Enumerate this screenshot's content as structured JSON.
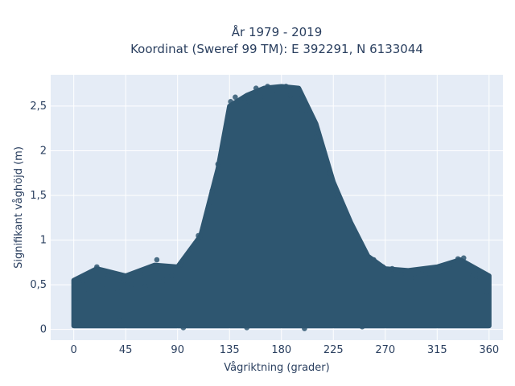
{
  "chart_data": {
    "type": "scatter",
    "title_lines": [
      "År 1979 - 2019",
      "Koordinat (Sweref 99 TM): E 392291, N 6133044"
    ],
    "xlabel": "Vågriktning (grader)",
    "ylabel": "Signifikant våghöjd (m)",
    "xlim": [
      -20,
      372
    ],
    "ylim": [
      -0.12,
      2.85
    ],
    "x_ticks": [
      {
        "value": 0,
        "label": "0"
      },
      {
        "value": 45,
        "label": "45"
      },
      {
        "value": 90,
        "label": "90"
      },
      {
        "value": 135,
        "label": "135"
      },
      {
        "value": 180,
        "label": "180"
      },
      {
        "value": 225,
        "label": "225"
      },
      {
        "value": 270,
        "label": "270"
      },
      {
        "value": 315,
        "label": "315"
      },
      {
        "value": 360,
        "label": "360"
      }
    ],
    "y_ticks": [
      {
        "value": 0,
        "label": "0"
      },
      {
        "value": 0.5,
        "label": "0,5"
      },
      {
        "value": 1,
        "label": "1"
      },
      {
        "value": 1.5,
        "label": "1,5"
      },
      {
        "value": 2,
        "label": "2"
      },
      {
        "value": 2.5,
        "label": "2,5"
      }
    ],
    "grid": true,
    "marker_color": "#2e5670",
    "plot_background": "#e5ecf6",
    "envelope": [
      {
        "x": 0,
        "y_max": 0.55
      },
      {
        "x": 20,
        "y_max": 0.68
      },
      {
        "x": 45,
        "y_max": 0.6
      },
      {
        "x": 70,
        "y_max": 0.72
      },
      {
        "x": 90,
        "y_max": 0.7
      },
      {
        "x": 110,
        "y_max": 1.05
      },
      {
        "x": 125,
        "y_max": 1.8
      },
      {
        "x": 135,
        "y_max": 2.5
      },
      {
        "x": 150,
        "y_max": 2.62
      },
      {
        "x": 165,
        "y_max": 2.7
      },
      {
        "x": 180,
        "y_max": 2.72
      },
      {
        "x": 195,
        "y_max": 2.7
      },
      {
        "x": 210,
        "y_max": 2.3
      },
      {
        "x": 225,
        "y_max": 1.65
      },
      {
        "x": 240,
        "y_max": 1.2
      },
      {
        "x": 255,
        "y_max": 0.82
      },
      {
        "x": 270,
        "y_max": 0.68
      },
      {
        "x": 290,
        "y_max": 0.66
      },
      {
        "x": 315,
        "y_max": 0.7
      },
      {
        "x": 335,
        "y_max": 0.78
      },
      {
        "x": 360,
        "y_max": 0.6
      }
    ],
    "points": [
      [
        2,
        0.3
      ],
      [
        8,
        0.55
      ],
      [
        12,
        0.45
      ],
      [
        20,
        0.7
      ],
      [
        25,
        0.5
      ],
      [
        30,
        0.6
      ],
      [
        38,
        0.42
      ],
      [
        44,
        0.55
      ],
      [
        50,
        0.5
      ],
      [
        58,
        0.62
      ],
      [
        62,
        0.48
      ],
      [
        68,
        0.7
      ],
      [
        72,
        0.78
      ],
      [
        78,
        0.55
      ],
      [
        85,
        0.6
      ],
      [
        92,
        0.72
      ],
      [
        100,
        0.85
      ],
      [
        108,
        1.05
      ],
      [
        115,
        1.25
      ],
      [
        120,
        1.55
      ],
      [
        125,
        1.85
      ],
      [
        130,
        2.1
      ],
      [
        136,
        2.55
      ],
      [
        140,
        2.6
      ],
      [
        146,
        2.48
      ],
      [
        152,
        2.55
      ],
      [
        158,
        2.7
      ],
      [
        162,
        2.6
      ],
      [
        168,
        2.72
      ],
      [
        172,
        2.65
      ],
      [
        178,
        2.7
      ],
      [
        184,
        2.72
      ],
      [
        188,
        2.62
      ],
      [
        194,
        2.5
      ],
      [
        198,
        2.45
      ],
      [
        204,
        2.3
      ],
      [
        210,
        2.15
      ],
      [
        216,
        1.95
      ],
      [
        222,
        1.75
      ],
      [
        228,
        1.5
      ],
      [
        236,
        1.25
      ],
      [
        244,
        1.05
      ],
      [
        252,
        0.85
      ],
      [
        260,
        0.78
      ],
      [
        268,
        0.7
      ],
      [
        276,
        0.68
      ],
      [
        284,
        0.62
      ],
      [
        296,
        0.58
      ],
      [
        305,
        0.62
      ],
      [
        318,
        0.68
      ],
      [
        326,
        0.72
      ],
      [
        333,
        0.79
      ],
      [
        338,
        0.8
      ],
      [
        346,
        0.6
      ],
      [
        352,
        0.58
      ],
      [
        358,
        0.42
      ],
      [
        5,
        0.05
      ],
      [
        40,
        0.1
      ],
      [
        95,
        0.02
      ],
      [
        150,
        0.02
      ],
      [
        200,
        0.01
      ],
      [
        250,
        0.03
      ],
      [
        300,
        0.05
      ],
      [
        355,
        0.08
      ]
    ]
  }
}
